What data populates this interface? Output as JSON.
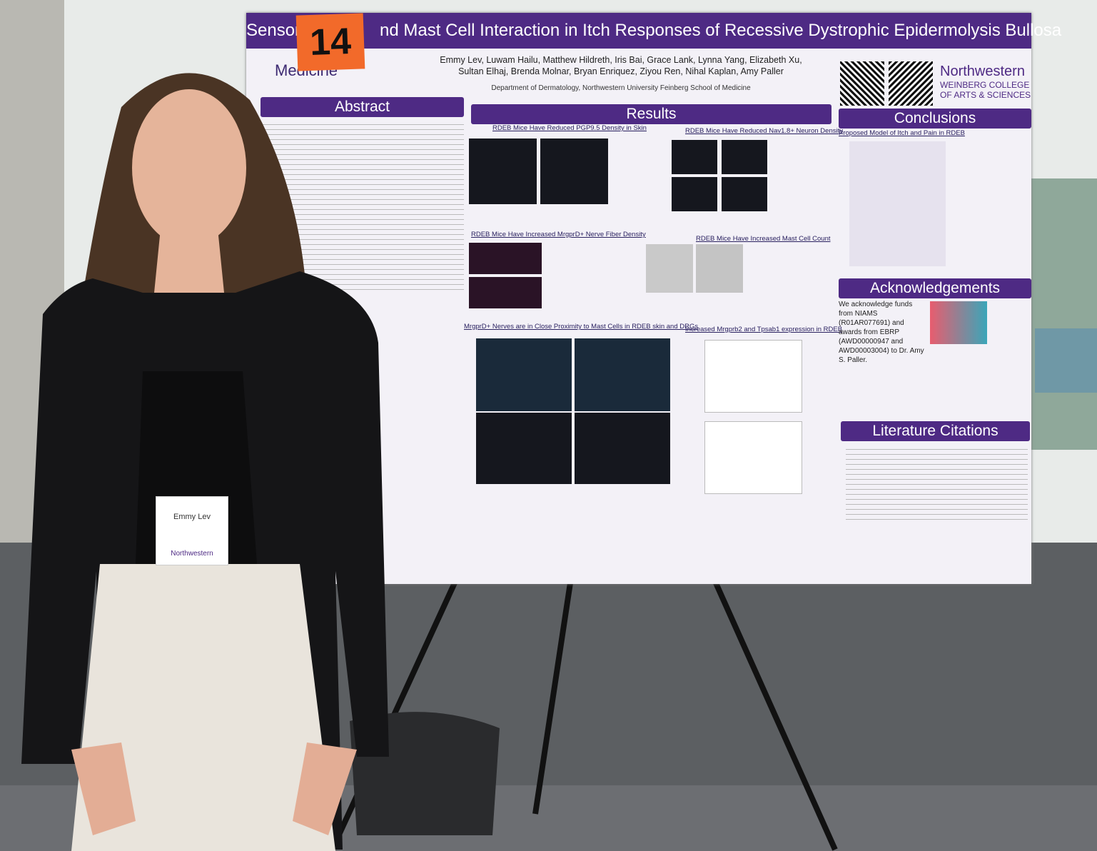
{
  "sign": "14",
  "poster": {
    "title_left": "Sensory N",
    "title_right": "nd Mast Cell Interaction in Itch Responses of Recessive Dystrophic Epidermolysis Bullosa",
    "logo_left": "Medicine",
    "authors": "Emmy Lev, Luwam Hailu, Matthew Hildreth, Iris Bai, Grace Lank, Lynna Yang, Elizabeth Xu, Sultan Elhaj, Brenda Molnar, Bryan Enriquez, Ziyou Ren, Nihal Kaplan, Amy Paller",
    "department": "Department of Dermatology, Northwestern University Feinberg School of Medicine",
    "logo_right": [
      "Northwestern",
      "WEINBERG COLLEGE",
      "OF ARTS & SCIENCES"
    ],
    "sections": {
      "abstract": "Abstract",
      "results": "Results",
      "conclusions": "Conclusions",
      "acknowledgements": "Acknowledgements",
      "citations": "Literature Citations"
    },
    "results_subheads": [
      "RDEB Mice Have Reduced PGP9.5 Density in Skin",
      "RDEB Mice Have Reduced Nav1.8+ Neuron Density",
      "RDEB Mice Have Increased MrgprD+ Nerve Fiber Density",
      "RDEB Mice Have Increased Mast Cell Count",
      "MrgprD+ Nerves are in Close Proximity to Mast Cells in RDEB skin and DRGs",
      "Increased Mrgprb2 and Tpsab1 expression in RDEB"
    ],
    "conclusions_subhead": "Proposed Model of Itch and Pain in RDEB",
    "acknowledgement_text": "We acknowledge funds from NIAMS (R01AR077691) and awards from EBRP (AWD00000947 and AWD00003004) to Dr. Amy S. Paller."
  },
  "badge": {
    "name": "Emmy Lev",
    "org": "Northwestern"
  }
}
